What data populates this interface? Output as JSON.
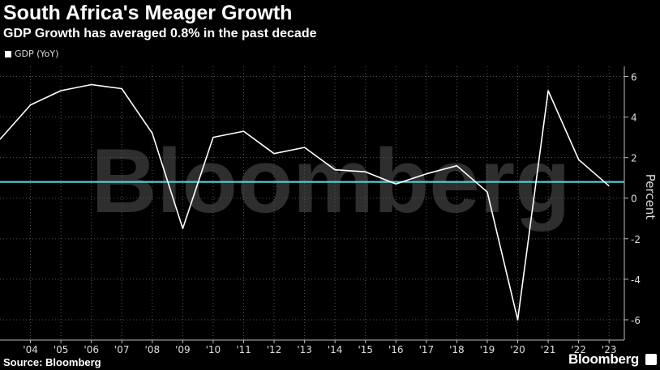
{
  "header": {
    "title": "South Africa's Meager Growth",
    "subtitle": "GDP Growth has averaged 0.8% in the past decade"
  },
  "footer": {
    "source": "Source: Bloomberg",
    "brand": "Bloomberg"
  },
  "watermark": "Bloomberg",
  "colors": {
    "background": "#000000",
    "series": "#ffffff",
    "average_line": "#4fd3d3",
    "grid": "#555555"
  },
  "chart_data": {
    "type": "line",
    "title": "South Africa's Meager Growth",
    "subtitle": "GDP Growth has averaged 0.8% in the past decade",
    "ylabel": "Percent",
    "ylim": [
      -7,
      6.5
    ],
    "yticks": [
      6,
      4,
      2,
      0,
      -2,
      -4,
      -6
    ],
    "xlim": [
      2003,
      2023.5
    ],
    "xticks": [
      "'04",
      "'05",
      "'06",
      "'07",
      "'08",
      "'09",
      "'10",
      "'11",
      "'12",
      "'13",
      "'14",
      "'15",
      "'16",
      "'17",
      "'18",
      "'19",
      "'20",
      "'21",
      "'22",
      "'23"
    ],
    "legend": {
      "entries": [
        "GDP (YoY)"
      ],
      "placement": "top-left"
    },
    "grid": "vertical and horizontal dotted",
    "reference_line": {
      "y": 0.8
    },
    "series": [
      {
        "name": "GDP (YoY)",
        "x": [
          2003,
          2004,
          2005,
          2006,
          2007,
          2008,
          2009,
          2010,
          2011,
          2012,
          2013,
          2014,
          2015,
          2016,
          2017,
          2018,
          2019,
          2020,
          2021,
          2022,
          2023
        ],
        "y": [
          2.9,
          4.6,
          5.3,
          5.6,
          5.4,
          3.2,
          -1.5,
          3.0,
          3.3,
          2.2,
          2.5,
          1.4,
          1.3,
          0.7,
          1.2,
          1.6,
          0.3,
          -6.0,
          5.3,
          1.9,
          0.6
        ]
      }
    ]
  }
}
